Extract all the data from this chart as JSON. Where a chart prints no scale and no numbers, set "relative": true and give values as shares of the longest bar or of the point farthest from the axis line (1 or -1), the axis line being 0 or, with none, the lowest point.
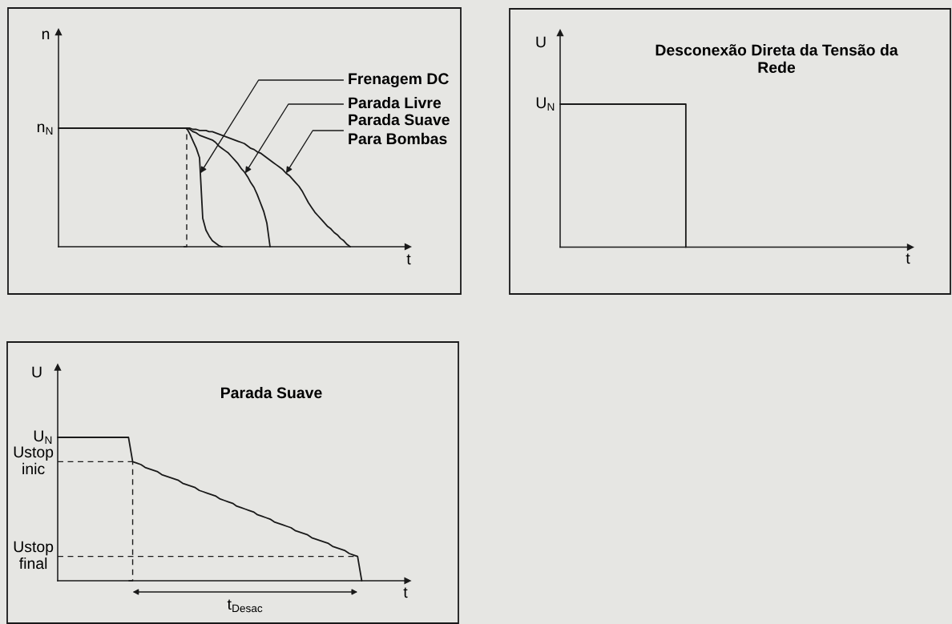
{
  "chart_data": [
    {
      "type": "line",
      "relative": true,
      "xlabel": "t",
      "ylabel": "n",
      "categories": [
        null,
        null,
        null,
        null,
        null,
        null,
        null,
        null,
        null,
        null,
        null,
        null,
        null,
        null,
        null,
        null,
        null,
        null,
        null,
        null,
        null,
        null,
        null,
        null,
        null,
        null,
        null,
        null,
        null,
        null,
        null,
        null,
        null,
        null,
        null,
        null,
        null,
        null,
        null,
        null,
        null,
        null,
        null,
        null,
        null,
        null,
        null,
        null,
        null,
        null,
        null,
        null,
        null,
        null,
        null,
        null,
        null,
        null,
        null,
        null,
        null,
        null,
        null,
        null,
        null,
        null,
        null,
        null,
        null,
        null,
        null,
        null,
        null,
        null,
        null,
        null,
        null,
        null,
        null,
        null,
        null,
        null,
        null,
        null,
        null,
        null,
        null,
        null,
        null,
        null,
        null,
        null,
        null,
        null,
        null,
        null,
        null,
        null,
        null,
        null,
        null,
        null,
        null,
        null,
        null,
        null,
        null,
        null,
        null,
        null
      ],
      "series": [
        {
          "name": "Frenagem DC",
          "color": "#1a1a1a",
          "values": [
            1,
            1,
            1,
            1,
            1,
            1,
            1,
            1,
            1,
            1,
            1,
            1,
            1,
            1,
            1,
            1,
            1,
            1,
            1,
            1,
            1,
            1,
            1,
            1,
            1,
            1,
            1,
            1,
            1,
            1,
            1,
            1,
            1,
            1,
            1,
            1,
            1,
            1,
            1,
            1,
            1,
            0.95,
            0.89,
            0.83,
            0.75,
            0.24,
            0.14,
            0.09,
            0.05,
            0.03,
            0.01,
            0,
            null,
            null,
            null,
            null,
            null,
            null,
            null,
            null,
            null,
            null,
            null,
            null,
            null,
            null,
            null,
            null,
            null,
            null,
            null,
            null,
            null,
            null,
            null,
            null,
            null,
            null,
            null,
            null,
            null,
            null,
            null,
            null,
            null,
            null,
            null,
            null,
            null,
            null,
            null,
            null,
            null,
            null,
            null,
            null,
            null,
            null,
            null,
            null,
            null,
            null,
            null,
            null,
            null,
            null,
            null,
            null,
            null,
            null
          ]
        },
        {
          "name": "Parada Livre",
          "color": "#1a1a1a",
          "values": [
            null,
            null,
            null,
            null,
            null,
            null,
            null,
            null,
            null,
            null,
            null,
            null,
            null,
            null,
            null,
            null,
            null,
            null,
            null,
            null,
            null,
            null,
            null,
            null,
            null,
            null,
            null,
            null,
            null,
            null,
            null,
            null,
            null,
            null,
            null,
            null,
            null,
            null,
            null,
            null,
            1,
            0.99,
            0.97,
            0.96,
            0.94,
            0.93,
            0.92,
            0.91,
            0.9,
            0.88,
            0.85,
            0.83,
            0.81,
            0.79,
            0.76,
            0.73,
            0.7,
            0.66,
            0.63,
            0.59,
            0.54,
            0.5,
            0.44,
            0.37,
            0.3,
            0.2,
            0,
            null,
            null,
            null,
            null,
            null,
            null,
            null,
            null,
            null,
            null,
            null,
            null,
            null,
            null,
            null,
            null,
            null,
            null,
            null,
            null,
            null,
            null,
            null,
            null,
            null,
            null,
            null,
            null,
            null,
            null,
            null,
            null,
            null,
            null,
            null,
            null,
            null,
            null,
            null,
            null,
            null,
            null,
            null
          ]
        },
        {
          "name": "Parada Suave\nPara Bombas",
          "color": "#1a1a1a",
          "values": [
            null,
            null,
            null,
            null,
            null,
            null,
            null,
            null,
            null,
            null,
            null,
            null,
            null,
            null,
            null,
            null,
            null,
            null,
            null,
            null,
            null,
            null,
            null,
            null,
            null,
            null,
            null,
            null,
            null,
            null,
            null,
            null,
            null,
            null,
            null,
            null,
            null,
            null,
            null,
            null,
            1,
            1,
            0.99,
            0.99,
            0.98,
            0.98,
            0.98,
            0.97,
            0.97,
            0.96,
            0.95,
            0.94,
            0.93,
            0.92,
            0.91,
            0.9,
            0.89,
            0.88,
            0.87,
            0.85,
            0.83,
            0.82,
            0.8,
            0.79,
            0.77,
            0.75,
            0.73,
            0.71,
            0.69,
            0.67,
            0.65,
            0.62,
            0.6,
            0.57,
            0.54,
            0.51,
            0.47,
            0.42,
            0.37,
            0.33,
            0.29,
            0.26,
            0.23,
            0.2,
            0.17,
            0.15,
            0.12,
            0.1,
            0.07,
            0.05,
            0.02,
            0,
            null,
            null,
            null,
            null,
            null,
            null,
            null,
            null,
            null,
            null,
            null,
            null,
            null,
            null,
            null,
            null,
            null,
            null
          ]
        },
        {
          "type": "step",
          "line_style": "dashed",
          "color": "#1a1a1a",
          "values": [
            null,
            null,
            null,
            null,
            null,
            null,
            null,
            null,
            null,
            null,
            null,
            null,
            null,
            null,
            null,
            null,
            null,
            null,
            null,
            null,
            null,
            null,
            null,
            null,
            null,
            null,
            null,
            null,
            null,
            null,
            null,
            null,
            null,
            null,
            null,
            null,
            null,
            null,
            null,
            0,
            1,
            null,
            null,
            null,
            null,
            null,
            null,
            null,
            null,
            null,
            null,
            null,
            null,
            null,
            null,
            null,
            null,
            null,
            null,
            null,
            null,
            null,
            null,
            null,
            null,
            null,
            null,
            null,
            null,
            null,
            null,
            null,
            null,
            null,
            null,
            null,
            null,
            null,
            null,
            null,
            null,
            null,
            null,
            null,
            null,
            null,
            null,
            null,
            null,
            null,
            null,
            null,
            null,
            null,
            null,
            null,
            null,
            null,
            null,
            null,
            null,
            null,
            null,
            null,
            null,
            null,
            null,
            null,
            null,
            null
          ]
        }
      ],
      "annotations": [
        "n$_{N}$"
      ]
    },
    {
      "type": "step",
      "relative": true,
      "title": "Desconexão Direta da Tensão da\nRede",
      "xlabel": "t",
      "ylabel": "U",
      "categories": [
        null,
        null,
        null,
        null,
        null,
        null,
        null,
        null,
        null,
        null,
        null,
        null,
        null,
        null,
        null,
        null,
        null,
        null,
        null,
        null,
        null,
        null,
        null,
        null,
        null,
        null,
        null,
        null,
        null,
        null,
        null,
        null,
        null,
        null,
        null,
        null,
        null,
        null,
        null,
        null
      ],
      "series": [
        {
          "color": "#1a1a1a",
          "values": [
            1,
            1,
            1,
            1,
            1,
            1,
            1,
            1,
            1,
            1,
            1,
            1,
            1,
            1,
            0,
            null,
            null,
            null,
            null,
            null,
            null,
            null,
            null,
            null,
            null,
            null,
            null,
            null,
            null,
            null,
            null,
            null,
            null,
            null,
            null,
            null,
            null,
            null,
            null,
            null
          ]
        }
      ],
      "annotations": [
        "U$_{N}$"
      ]
    },
    {
      "type": "line",
      "relative": true,
      "title": "Parada Suave",
      "xlabel": "t",
      "ylabel": "U",
      "categories": [
        null,
        null,
        null,
        null,
        null,
        null,
        null,
        null,
        null,
        null,
        null,
        null,
        null,
        null,
        null,
        null,
        null,
        null,
        null,
        null,
        null,
        null,
        null,
        null,
        null,
        null,
        null,
        null,
        null,
        null,
        null,
        null,
        null,
        null,
        null,
        null,
        null,
        null,
        null,
        null,
        null,
        null,
        null,
        null,
        null,
        null,
        null,
        null,
        null,
        null,
        null,
        null,
        null,
        null,
        null,
        null,
        null,
        null,
        null,
        null,
        null,
        null,
        null,
        null,
        null,
        null,
        null,
        null,
        null,
        null,
        null,
        null,
        null,
        null,
        null,
        null,
        null,
        null,
        null,
        null,
        null,
        null,
        null,
        null,
        null
      ],
      "series": [
        {
          "color": "#1a1a1a",
          "values": [
            1,
            1,
            1,
            1,
            1,
            1,
            1,
            1,
            1,
            1,
            1,
            1,
            1,
            1,
            1,
            1,
            1,
            1,
            0.83,
            0.82,
            0.81,
            0.79,
            0.78,
            0.77,
            0.76,
            0.74,
            0.73,
            0.72,
            0.71,
            0.7,
            0.68,
            0.67,
            0.66,
            0.65,
            0.63,
            0.62,
            0.61,
            0.6,
            0.59,
            0.57,
            0.56,
            0.55,
            0.54,
            0.52,
            0.51,
            0.5,
            0.49,
            0.48,
            0.46,
            0.45,
            0.44,
            0.43,
            0.41,
            0.4,
            0.39,
            0.38,
            0.37,
            0.35,
            0.34,
            0.33,
            0.32,
            0.3,
            0.29,
            0.28,
            0.27,
            0.26,
            0.24,
            0.23,
            0.22,
            0.21,
            0.19,
            0.18,
            0.17,
            0,
            null,
            null,
            null,
            null,
            null,
            null,
            null,
            null,
            null,
            null,
            null
          ]
        },
        {
          "type": "step",
          "line_style": "dashed",
          "color": "#1a1a1a",
          "values": [
            null,
            null,
            null,
            null,
            null,
            null,
            null,
            null,
            null,
            null,
            null,
            null,
            null,
            null,
            null,
            null,
            null,
            0,
            0.83,
            null,
            null,
            null,
            null,
            null,
            null,
            null,
            null,
            null,
            null,
            null,
            null,
            null,
            null,
            null,
            null,
            null,
            null,
            null,
            null,
            null,
            null,
            null,
            null,
            null,
            null,
            null,
            null,
            null,
            null,
            null,
            null,
            null,
            null,
            null,
            null,
            null,
            null,
            null,
            null,
            null,
            null,
            null,
            null,
            null,
            null,
            null,
            null,
            null,
            null,
            null,
            null,
            null,
            null,
            null,
            null,
            null,
            null,
            null,
            null,
            null,
            null,
            null,
            null,
            null,
            null
          ]
        }
      ],
      "annotations": [
        "U$_{N}$",
        "t$_{Desac}$"
      ],
      "ref_lines": [
        {
          "axis": "y",
          "value": 0.83,
          "label": "Ustop\ninic",
          "line_style": "dashed",
          "color": "#1a1a1a"
        },
        {
          "axis": "y",
          "value": 0.17,
          "label": "Ustop\nfinal",
          "line_style": "dashed",
          "color": "#1a1a1a"
        }
      ]
    }
  ]
}
